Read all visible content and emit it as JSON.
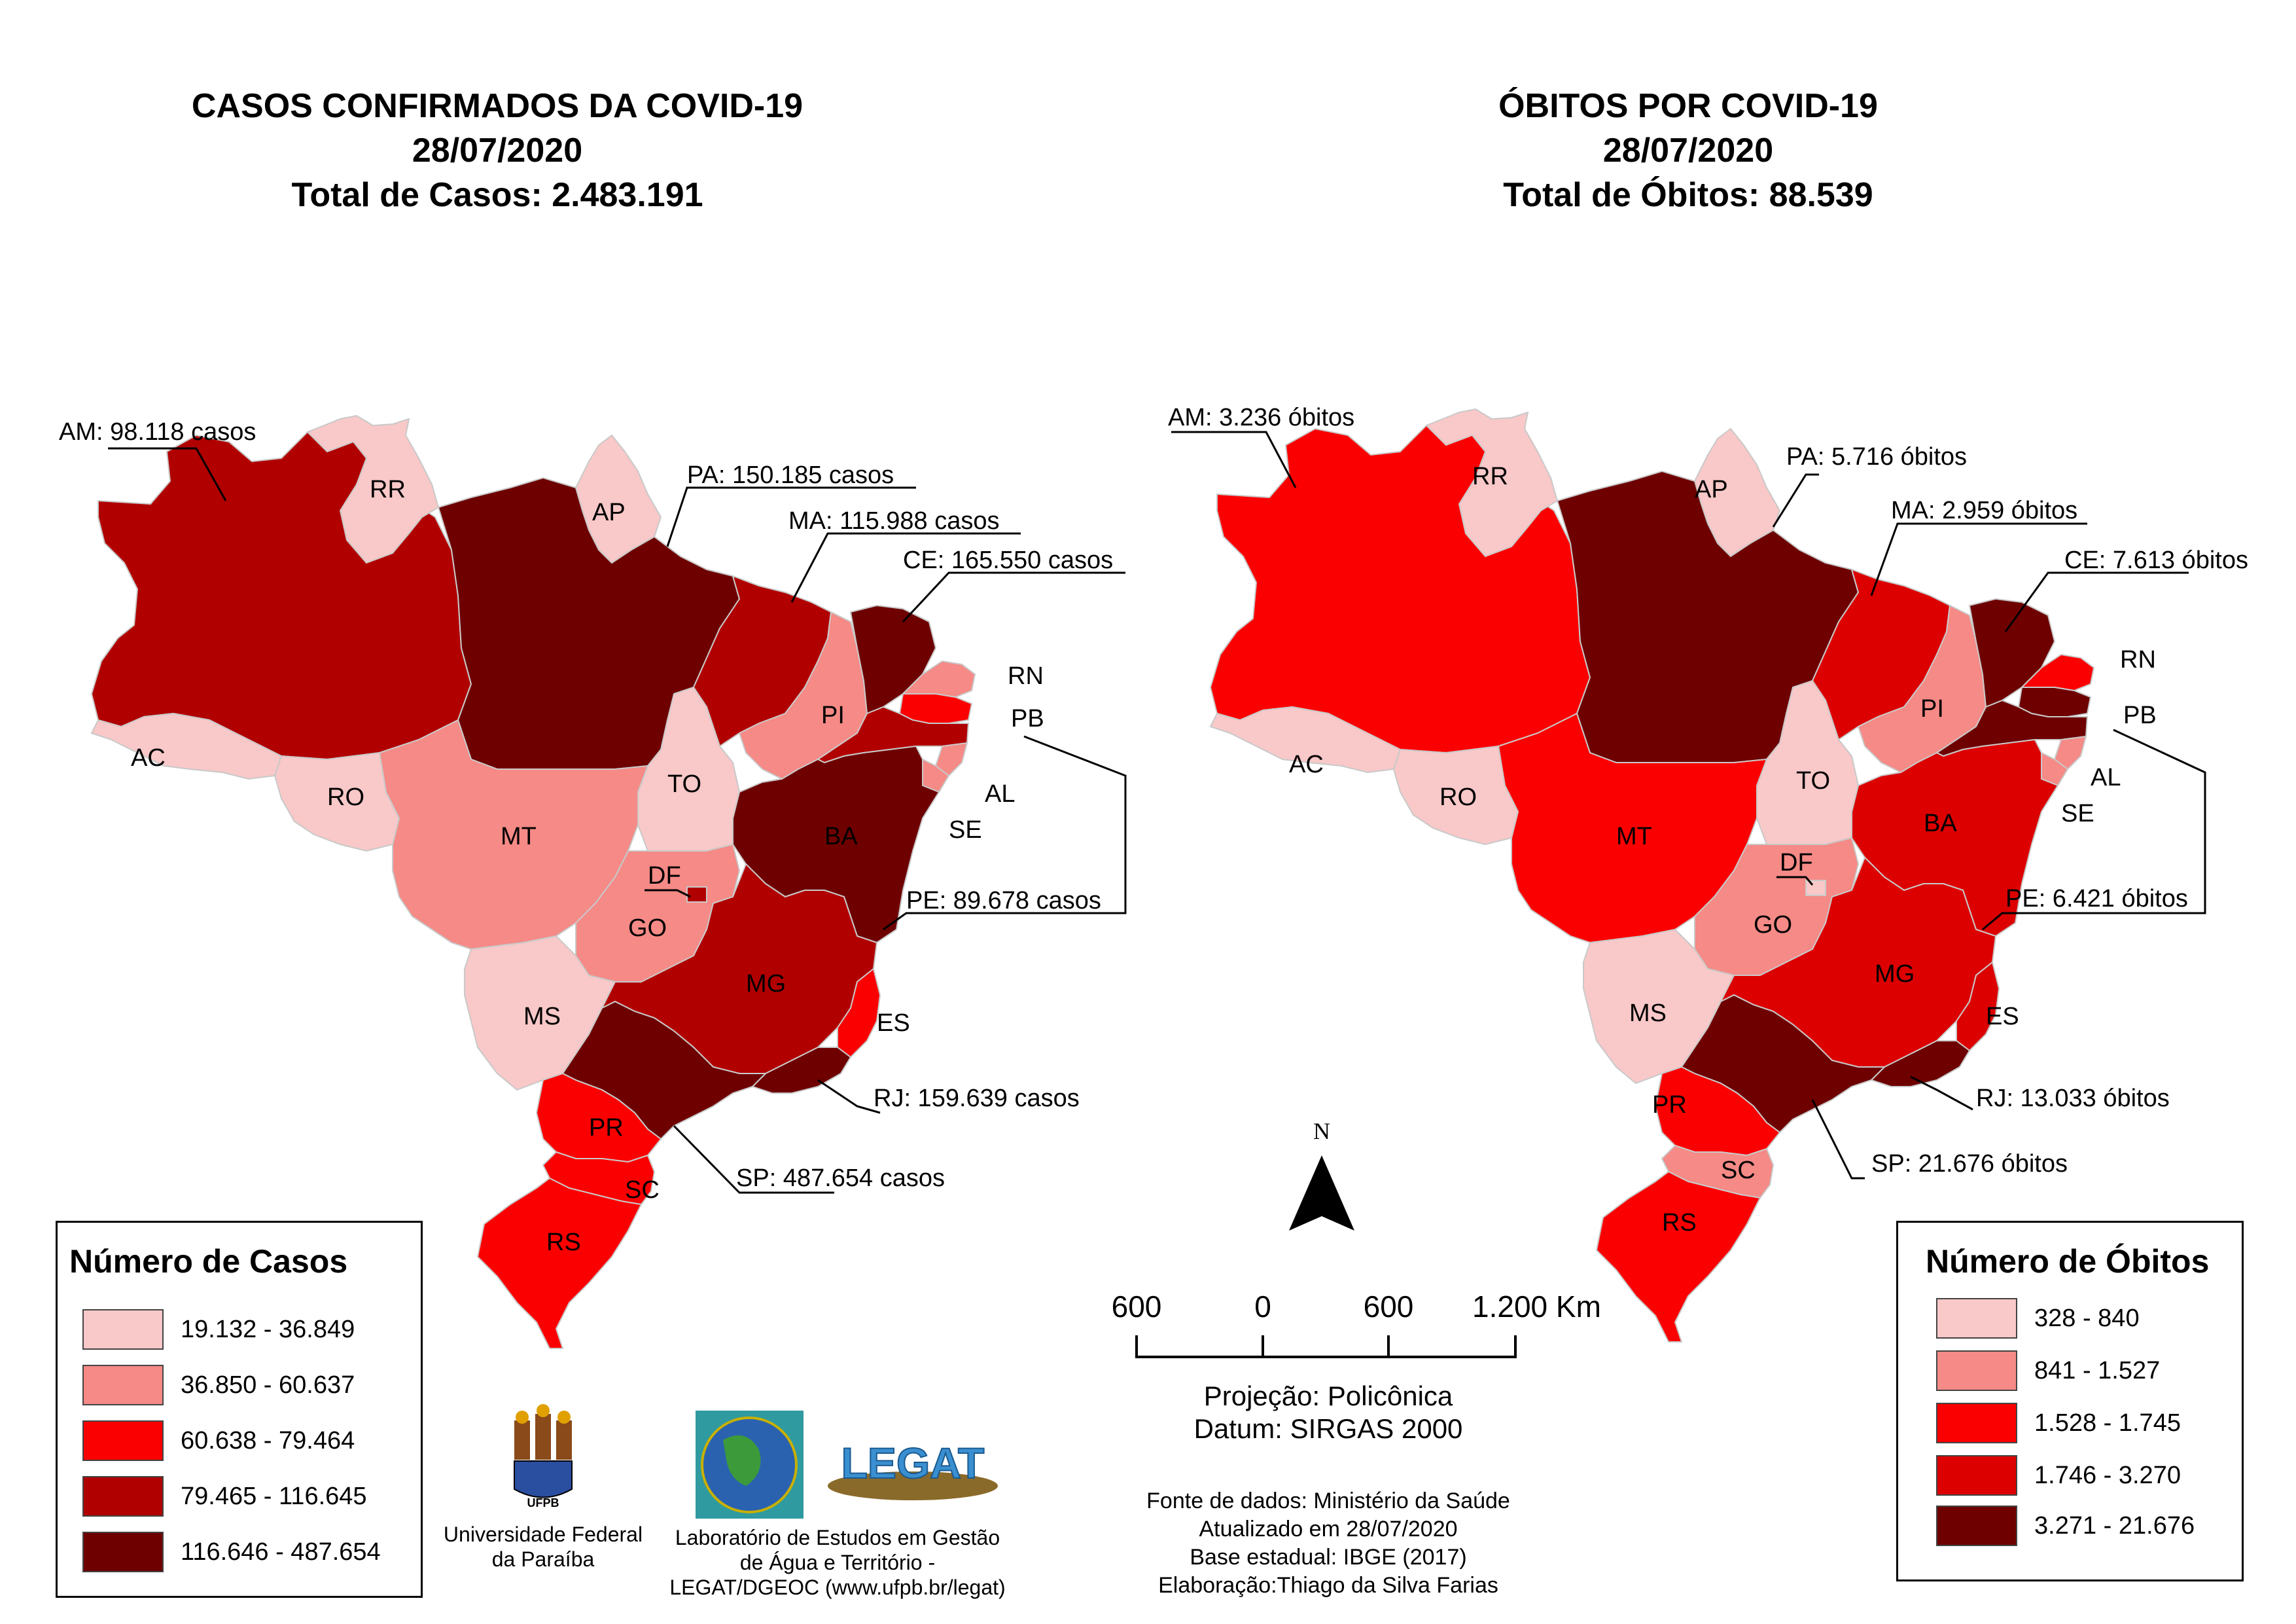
{
  "left_map": {
    "title_line1": "CASOS CONFIRMADOS DA COVID-19",
    "title_line2": "28/07/2020",
    "title_line3": "Total de Casos: 2.483.191",
    "states": [
      "RR",
      "AP",
      "AC",
      "RO",
      "MT",
      "MS",
      "TO",
      "PI",
      "GO",
      "DF",
      "BA",
      "MG",
      "ES",
      "PR",
      "SC",
      "RS",
      "RN",
      "PB",
      "AL",
      "SE"
    ],
    "callouts": {
      "AM": "AM: 98.118 casos",
      "PA": "PA: 150.185 casos",
      "MA": "MA: 115.988 casos",
      "CE": "CE: 165.550 casos",
      "PE": "PE: 89.678 casos",
      "RJ": "RJ: 159.639 casos",
      "SP": "SP: 487.654 casos"
    },
    "legend": {
      "title": "Número de Casos",
      "items": [
        {
          "label": "19.132 - 36.849",
          "color": "#f9c8c8"
        },
        {
          "label": "36.850 - 60.637",
          "color": "#f58a86"
        },
        {
          "label": "60.638 - 79.464",
          "color": "#fb0000"
        },
        {
          "label": "79.465 - 116.645",
          "color": "#b10000"
        },
        {
          "label": "116.646 - 487.654",
          "color": "#6e0000"
        }
      ]
    }
  },
  "right_map": {
    "title_line1": "ÓBITOS POR COVID-19",
    "title_line2": "28/07/2020",
    "title_line3": "Total de Óbitos: 88.539",
    "states": [
      "RR",
      "AP",
      "AC",
      "RO",
      "MT",
      "MS",
      "TO",
      "PI",
      "GO",
      "DF",
      "BA",
      "MG",
      "ES",
      "PR",
      "SC",
      "RS",
      "RN",
      "PB",
      "AL",
      "SE"
    ],
    "callouts": {
      "AM": "AM: 3.236 óbitos",
      "PA": "PA: 5.716 óbitos",
      "MA": "MA: 2.959 óbitos",
      "CE": "CE: 7.613 óbitos",
      "PE": "PE: 6.421 óbitos",
      "RJ": "RJ: 13.033 óbitos",
      "SP": "SP: 21.676 óbitos"
    },
    "legend": {
      "title": "Número de Óbitos",
      "items": [
        {
          "label": "328 - 840",
          "color": "#f9c8c8"
        },
        {
          "label": "841 - 1.527",
          "color": "#f58a86"
        },
        {
          "label": "1.528 - 1.745",
          "color": "#fb0000"
        },
        {
          "label": "1.746 - 3.270",
          "color": "#dc0000"
        },
        {
          "label": "3.271 - 21.676",
          "color": "#6e0000"
        }
      ]
    }
  },
  "north_arrow": "N",
  "scale_bar": {
    "ticks": [
      "600",
      "0",
      "600",
      "1.200 Km"
    ]
  },
  "projection": {
    "line1": "Projeção: Policônica",
    "line2": "Datum: SIRGAS 2000"
  },
  "sources": {
    "line1": "Fonte de dados: Ministério da Saúde",
    "line2": "Atualizado em 28/07/2020",
    "line3": "Base estadual: IBGE (2017)",
    "line4": "Elaboração:Thiago da Silva Farias"
  },
  "logos": {
    "ufpb_caption_line1": "Universidade Federal",
    "ufpb_caption_line2": "da Paraíba",
    "ufpb_mark": "UFPB",
    "legat_caption_line1": "Laboratório de Estudos em Gestão",
    "legat_caption_line2": "de Água e Território -",
    "legat_caption_line3": "LEGAT/DGEOC (www.ufpb.br/legat)",
    "legat_mark": "LEGAT"
  },
  "colors": {
    "class1": "#f9c8c8",
    "class2": "#f58a86",
    "class3": "#fb0000",
    "class4": "#b10000",
    "class4_deaths": "#dc0000",
    "class5": "#6e0000"
  }
}
